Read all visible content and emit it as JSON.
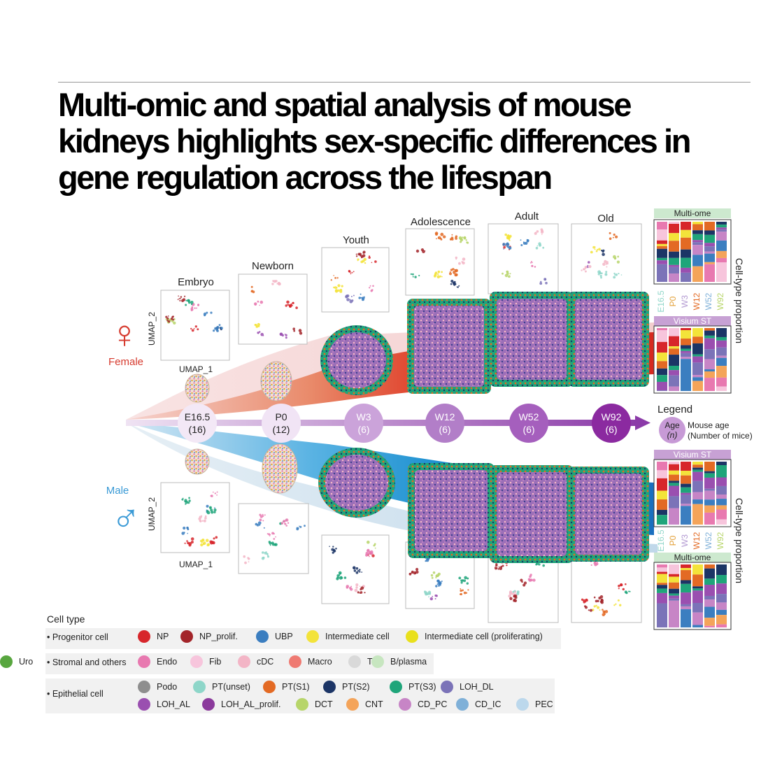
{
  "title_lines": [
    "Multi-omic and spatial analysis of mouse",
    "kidneys highlights sex-specific differences in",
    "gene regulation across the lifespan"
  ],
  "stages": [
    "Embryo",
    "Newborn",
    "Youth",
    "Adolescence",
    "Adult",
    "Old"
  ],
  "umap": {
    "x_label": "UMAP_1",
    "y_label": "UMAP_2"
  },
  "sexes": {
    "female": "Female",
    "male": "Male",
    "female_symbol": "♀",
    "male_symbol": "♂"
  },
  "timepoints": [
    {
      "age": "E16.5",
      "n": "(16)"
    },
    {
      "age": "P0",
      "n": "(12)"
    },
    {
      "age": "W3",
      "n": "(6)"
    },
    {
      "age": "W12",
      "n": "(6)"
    },
    {
      "age": "W52",
      "n": "(6)"
    },
    {
      "age": "W92",
      "n": "(6)"
    }
  ],
  "legend": {
    "title": "Legend",
    "age_label": "Age",
    "n_label": "(n)",
    "line1": "Mouse age",
    "line2": "(Number of mice)"
  },
  "proportion_panels": {
    "multiome": "Multi-ome",
    "visium": "Visium ST",
    "axis_title": "Cell-type proportion",
    "ages": [
      "E16.5",
      "P0",
      "W3",
      "W12",
      "W52",
      "W92"
    ]
  },
  "cell_type": {
    "title": "Cell type",
    "groups": [
      {
        "name": "Progenitor cell",
        "items": [
          {
            "label": "NP",
            "color": "#d7262b"
          },
          {
            "label": "NP_prolif.",
            "color": "#a3252a"
          },
          {
            "label": "UBP",
            "color": "#3b7ec0"
          },
          {
            "label": "Intermediate cell",
            "color": "#f3e33a"
          },
          {
            "label": "Intermediate cell (proliferating)",
            "color": "#e9e01c"
          }
        ]
      },
      {
        "name": "Stromal and others",
        "items": [
          {
            "label": "Endo",
            "color": "#e879b0"
          },
          {
            "label": "Fib",
            "color": "#f7c5dc"
          },
          {
            "label": "cDC",
            "color": "#f3b5c6"
          },
          {
            "label": "Macro",
            "color": "#ef7a72"
          },
          {
            "label": "T",
            "color": "#d9d9d9"
          },
          {
            "label": "B/plasma",
            "color": "#c7e6c0"
          },
          {
            "label": "Uro",
            "color": "#58a63f"
          }
        ]
      },
      {
        "name": "Epithelial cell",
        "items": [
          {
            "label": "Podo",
            "color": "#8e8e8e"
          },
          {
            "label": "PT(unset)",
            "color": "#8ed6c9"
          },
          {
            "label": "PT(S1)",
            "color": "#e36a24"
          },
          {
            "label": "PT(S2)",
            "color": "#1c3566"
          },
          {
            "label": "PT(S3)",
            "color": "#1fa57a"
          },
          {
            "label": "LOH_DL",
            "color": "#7b73b8"
          },
          {
            "label": "LOH_AL",
            "color": "#9a4fb0"
          },
          {
            "label": "LOH_AL_prolif.",
            "color": "#8b3a9c"
          },
          {
            "label": "DCT",
            "color": "#b7d56a"
          },
          {
            "label": "CNT",
            "color": "#f4a45a"
          },
          {
            "label": "CD_PC",
            "color": "#c785c6"
          },
          {
            "label": "CD_IC",
            "color": "#7fb0d8"
          },
          {
            "label": "PEC",
            "color": "#bcd8ec"
          }
        ]
      }
    ]
  },
  "colors": {
    "female": "#d63a2e",
    "male": "#3a9ad6",
    "timeline": "#8b3aa8"
  }
}
